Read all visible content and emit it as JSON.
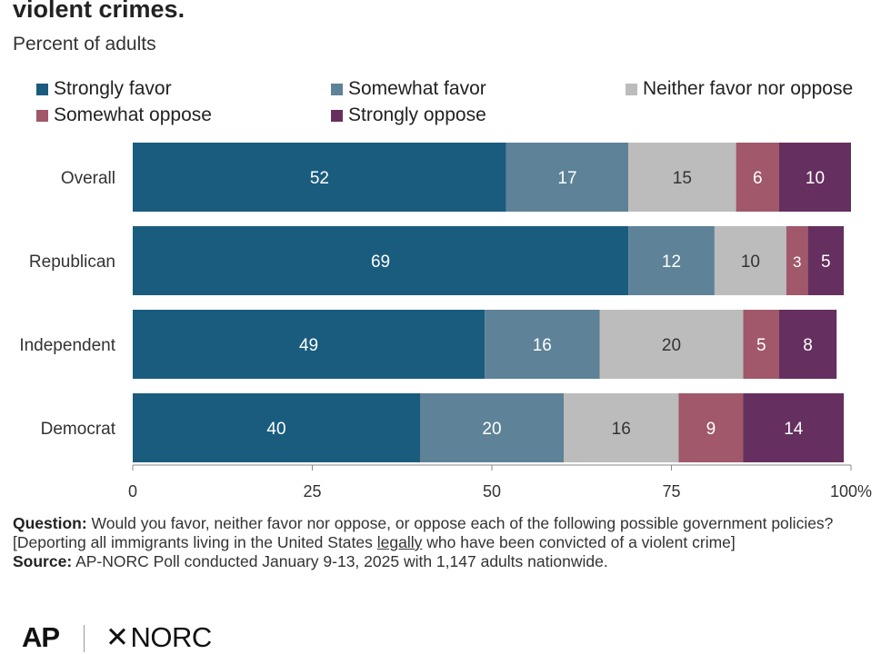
{
  "header": {
    "title": "violent crimes.",
    "subtitle": "Percent of adults"
  },
  "chart_data": {
    "type": "bar",
    "orientation": "horizontal",
    "stacked": true,
    "categories": [
      "Overall",
      "Republican",
      "Independent",
      "Democrat"
    ],
    "series": [
      {
        "name": "Strongly favor",
        "color": "#1a5c7e",
        "values": [
          52,
          69,
          49,
          40
        ]
      },
      {
        "name": "Somewhat favor",
        "color": "#5e8297",
        "values": [
          17,
          12,
          16,
          20
        ]
      },
      {
        "name": "Neither favor nor oppose",
        "color": "#bcbcbc",
        "values": [
          15,
          10,
          20,
          16
        ]
      },
      {
        "name": "Somewhat oppose",
        "color": "#a0586a",
        "values": [
          6,
          3,
          5,
          9
        ]
      },
      {
        "name": "Strongly oppose",
        "color": "#65305f",
        "values": [
          10,
          5,
          8,
          14
        ]
      }
    ],
    "xlim": [
      0,
      100
    ],
    "x_ticks": [
      "0",
      "25",
      "50",
      "75",
      "100%"
    ],
    "x_tick_values": [
      0,
      25,
      50,
      75,
      100
    ],
    "legend": "top",
    "grid": false
  },
  "footer": {
    "question_label": "Question:",
    "question_text_1": "Would you favor, neither favor nor oppose, or oppose each of the following possible government policies? [Deporting all immigrants living in the United States",
    "question_underlined": "legally",
    "question_text_2": "who have been convicted of a violent crime]",
    "source_label": "Source:",
    "source_text": "AP-NORC Poll conducted January 9-13, 2025 with 1,147 adults nationwide."
  },
  "logos": {
    "ap": "AP",
    "norc": "NORC",
    "norc_mark": "✕"
  }
}
